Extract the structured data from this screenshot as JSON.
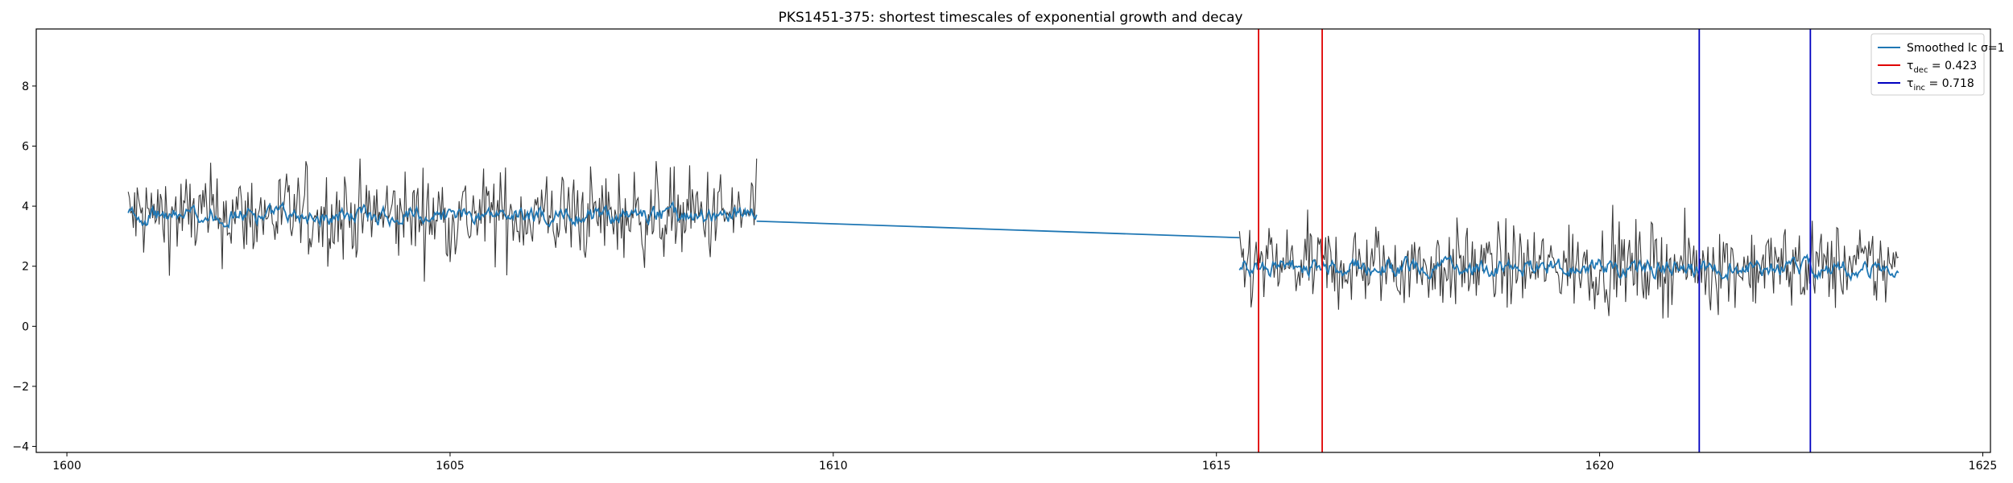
{
  "chart_data": {
    "type": "line",
    "title": "PKS1451-375: shortest timescales of exponential growth and decay",
    "xlabel": "",
    "ylabel": "",
    "xlim": [
      1599.6,
      1625.1
    ],
    "ylim": [
      -4.2,
      9.9
    ],
    "xticks": [
      1600,
      1605,
      1610,
      1615,
      1620,
      1625
    ],
    "yticks": [
      -4,
      -2,
      0,
      2,
      4,
      6,
      8
    ],
    "grid": false,
    "legend_position": "top-right",
    "segments": [
      {
        "x_start": 1600.8,
        "x_end": 1609.0,
        "mean": 3.7,
        "amplitude": 1.1,
        "smooth_level": 3.7
      },
      {
        "x_start": 1615.3,
        "x_end": 1623.9,
        "mean": 2.0,
        "amplitude": 1.0,
        "smooth_level": 1.95
      }
    ],
    "series": [
      {
        "name": "Smoothed lc $\\sigma$=1",
        "legend_label": "Smoothed lc σ=1",
        "color": "#1f77b4",
        "style": "line",
        "bridge": {
          "x": [
            1609.0,
            1615.3
          ],
          "y": [
            3.5,
            2.95
          ]
        }
      },
      {
        "name": "$\\tau_{dec}$ = 0.423",
        "legend_label": "τdec = 0.423",
        "legend_base": "τ",
        "legend_sub": "dec",
        "legend_value": " = 0.423",
        "color": "#e00000",
        "style": "vline",
        "x": [
          1615.55,
          1616.38
        ]
      },
      {
        "name": "$\\tau_{inc}$ = 0.718",
        "legend_label": "τinc = 0.718",
        "legend_base": "τ",
        "legend_sub": "inc",
        "legend_value": " = 0.718",
        "color": "#0000c0",
        "style": "vline",
        "x": [
          1621.3,
          1622.75
        ]
      }
    ],
    "raw_color": "#3a3a3a"
  }
}
